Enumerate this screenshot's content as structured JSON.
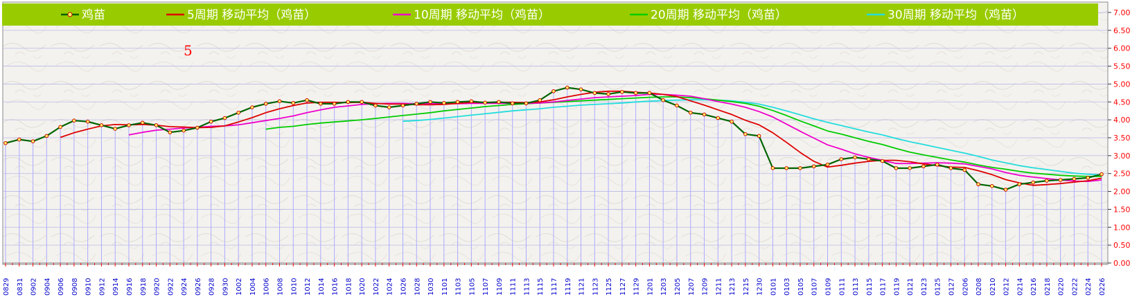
{
  "chart_data": {
    "type": "line",
    "title": "",
    "xlabel": "",
    "ylabel": "",
    "ylim": [
      0,
      7
    ],
    "y_ticks": [
      "0.00",
      "0.50",
      "1.00",
      "1.50",
      "2.00",
      "2.50",
      "3.00",
      "3.50",
      "4.00",
      "4.50",
      "5.00",
      "5.50",
      "6.00",
      "6.50",
      "7.00"
    ],
    "y_axis_position": "right",
    "grid": true,
    "legend_position": "top",
    "annotation": "5",
    "x_labels": [
      "0829",
      "0831",
      "0902",
      "0904",
      "0906",
      "0908",
      "0910",
      "0912",
      "0914",
      "0916",
      "0918",
      "0920",
      "0922",
      "0924",
      "0926",
      "0928",
      "0930",
      "1002",
      "1004",
      "1006",
      "1008",
      "1010",
      "1012",
      "1014",
      "1016",
      "1018",
      "1020",
      "1022",
      "1024",
      "1026",
      "1028",
      "1030",
      "1101",
      "1103",
      "1105",
      "1107",
      "1109",
      "1111",
      "1113",
      "1115",
      "1117",
      "1119",
      "1121",
      "1123",
      "1125",
      "1127",
      "1129",
      "1201",
      "1203",
      "1205",
      "1207",
      "1209",
      "1211",
      "1213",
      "1215",
      "1230",
      "0101",
      "0103",
      "0105",
      "0107",
      "0109",
      "0111",
      "0113",
      "0115",
      "0117",
      "0119",
      "0121",
      "0123",
      "0125",
      "0127",
      "0206",
      "0208",
      "0210",
      "0212",
      "0214",
      "0216",
      "0218",
      "0220",
      "0222",
      "0224",
      "0226"
    ],
    "series": [
      {
        "name": "鸡苗",
        "color": "#006400",
        "values": [
          3.35,
          3.45,
          3.4,
          3.55,
          3.8,
          3.98,
          3.95,
          3.85,
          3.75,
          3.85,
          3.92,
          3.85,
          3.65,
          3.7,
          3.78,
          3.95,
          4.05,
          4.2,
          4.35,
          4.45,
          4.52,
          4.47,
          4.55,
          4.45,
          4.45,
          4.5,
          4.5,
          4.4,
          4.35,
          4.4,
          4.45,
          4.5,
          4.47,
          4.5,
          4.52,
          4.48,
          4.5,
          4.46,
          4.46,
          4.55,
          4.8,
          4.9,
          4.85,
          4.75,
          4.72,
          4.78,
          4.75,
          4.75,
          4.55,
          4.4,
          4.2,
          4.15,
          4.05,
          3.95,
          3.6,
          3.55,
          2.65,
          2.65,
          2.65,
          2.7,
          2.75,
          2.9,
          2.95,
          2.9,
          2.85,
          2.65,
          2.65,
          2.7,
          2.75,
          2.65,
          2.6,
          2.2,
          2.15,
          2.05,
          2.2,
          2.25,
          2.3,
          2.32,
          2.35,
          2.38,
          2.48
        ]
      },
      {
        "name": "5周期 移动平均（鸡苗）",
        "color": "#dd0000",
        "values": [
          null,
          null,
          null,
          null,
          3.51,
          3.64,
          3.74,
          3.83,
          3.87,
          3.86,
          3.87,
          3.85,
          3.81,
          3.8,
          3.78,
          3.79,
          3.83,
          3.94,
          4.06,
          4.2,
          4.31,
          4.4,
          4.47,
          4.49,
          4.49,
          4.48,
          4.49,
          4.46,
          4.44,
          4.44,
          4.42,
          4.42,
          4.43,
          4.46,
          4.49,
          4.49,
          4.49,
          4.49,
          4.48,
          4.5,
          4.56,
          4.64,
          4.71,
          4.77,
          4.8,
          4.8,
          4.77,
          4.75,
          4.71,
          4.65,
          4.53,
          4.41,
          4.28,
          4.15,
          3.99,
          3.86,
          3.64,
          3.37,
          3.09,
          2.84,
          2.68,
          2.73,
          2.79,
          2.84,
          2.87,
          2.87,
          2.83,
          2.77,
          2.72,
          2.68,
          2.67,
          2.58,
          2.47,
          2.33,
          2.24,
          2.17,
          2.19,
          2.22,
          2.26,
          2.3,
          2.37
        ]
      },
      {
        "name": "10周期 移动平均（鸡苗）",
        "color": "#ee00cc",
        "values": [
          null,
          null,
          null,
          null,
          null,
          null,
          null,
          null,
          null,
          3.58,
          3.65,
          3.71,
          3.74,
          3.77,
          3.79,
          3.82,
          3.83,
          3.86,
          3.92,
          3.98,
          4.04,
          4.11,
          4.2,
          4.28,
          4.35,
          4.39,
          4.43,
          4.45,
          4.46,
          4.46,
          4.45,
          4.45,
          4.45,
          4.45,
          4.46,
          4.46,
          4.46,
          4.46,
          4.46,
          4.47,
          4.5,
          4.54,
          4.58,
          4.62,
          4.64,
          4.66,
          4.68,
          4.71,
          4.71,
          4.69,
          4.66,
          4.59,
          4.51,
          4.44,
          4.35,
          4.23,
          4.08,
          3.88,
          3.68,
          3.49,
          3.3,
          3.18,
          3.05,
          2.95,
          2.87,
          2.78,
          2.78,
          2.79,
          2.8,
          2.79,
          2.77,
          2.7,
          2.63,
          2.53,
          2.45,
          2.4,
          2.36,
          2.32,
          2.29,
          2.28,
          2.32
        ]
      },
      {
        "name": "20周期 移动平均（鸡苗）",
        "color": "#00cc00",
        "values": [
          null,
          null,
          null,
          null,
          null,
          null,
          null,
          null,
          null,
          null,
          null,
          null,
          null,
          null,
          null,
          null,
          null,
          null,
          null,
          3.74,
          3.79,
          3.82,
          3.87,
          3.91,
          3.94,
          3.97,
          4.0,
          4.04,
          4.08,
          4.12,
          4.16,
          4.2,
          4.25,
          4.29,
          4.33,
          4.37,
          4.4,
          4.43,
          4.45,
          4.47,
          4.49,
          4.51,
          4.53,
          4.55,
          4.57,
          4.59,
          4.61,
          4.63,
          4.64,
          4.64,
          4.62,
          4.59,
          4.55,
          4.51,
          4.46,
          4.38,
          4.26,
          4.12,
          3.97,
          3.83,
          3.69,
          3.6,
          3.5,
          3.4,
          3.31,
          3.2,
          3.1,
          3.02,
          2.95,
          2.88,
          2.82,
          2.74,
          2.67,
          2.62,
          2.56,
          2.51,
          2.48,
          2.45,
          2.43,
          2.42,
          2.42
        ]
      },
      {
        "name": "30周期 移动平均（鸡苗）",
        "color": "#22dddd",
        "values": [
          null,
          null,
          null,
          null,
          null,
          null,
          null,
          null,
          null,
          null,
          null,
          null,
          null,
          null,
          null,
          null,
          null,
          null,
          null,
          null,
          null,
          null,
          null,
          null,
          null,
          null,
          null,
          null,
          null,
          3.96,
          3.98,
          4.01,
          4.05,
          4.09,
          4.13,
          4.17,
          4.21,
          4.25,
          4.28,
          4.31,
          4.35,
          4.38,
          4.41,
          4.43,
          4.45,
          4.47,
          4.5,
          4.52,
          4.54,
          4.55,
          4.56,
          4.56,
          4.55,
          4.53,
          4.49,
          4.44,
          4.35,
          4.25,
          4.14,
          4.03,
          3.93,
          3.84,
          3.75,
          3.66,
          3.58,
          3.48,
          3.39,
          3.31,
          3.23,
          3.15,
          3.07,
          2.98,
          2.88,
          2.8,
          2.72,
          2.66,
          2.61,
          2.56,
          2.51,
          2.48,
          2.46
        ]
      }
    ]
  }
}
